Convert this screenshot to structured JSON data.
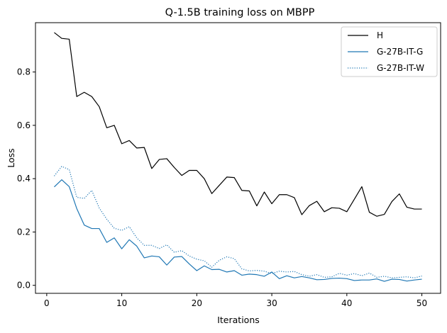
{
  "chart_data": {
    "type": "line",
    "title": "Q-1.5B training loss on MBPP",
    "xlabel": "Iterations",
    "ylabel": "Loss",
    "xlim": [
      -1.5,
      52.5
    ],
    "ylim": [
      -0.03,
      0.985
    ],
    "xticks": [
      0,
      10,
      20,
      30,
      40,
      50
    ],
    "yticks": [
      0.0,
      0.2,
      0.4,
      0.6,
      0.8
    ],
    "ytick_labels": [
      "0.0",
      "0.2",
      "0.4",
      "0.6",
      "0.8"
    ],
    "grid": false,
    "legend_position": "top-right",
    "x": [
      1,
      2,
      3,
      4,
      5,
      6,
      7,
      8,
      9,
      10,
      11,
      12,
      13,
      14,
      15,
      16,
      17,
      18,
      19,
      20,
      21,
      22,
      23,
      24,
      25,
      26,
      27,
      28,
      29,
      30,
      31,
      32,
      33,
      34,
      35,
      36,
      37,
      38,
      39,
      40,
      41,
      42,
      43,
      44,
      45,
      46,
      47,
      48,
      49,
      50
    ],
    "series": [
      {
        "name": "H",
        "color": "#000000",
        "style": "solid",
        "values": [
          0.948,
          0.926,
          0.923,
          0.708,
          0.724,
          0.708,
          0.67,
          0.591,
          0.6,
          0.531,
          0.543,
          0.515,
          0.517,
          0.438,
          0.472,
          0.475,
          0.442,
          0.412,
          0.431,
          0.431,
          0.4,
          0.344,
          0.375,
          0.406,
          0.404,
          0.356,
          0.354,
          0.298,
          0.35,
          0.306,
          0.34,
          0.34,
          0.329,
          0.265,
          0.299,
          0.315,
          0.276,
          0.291,
          0.289,
          0.276,
          0.323,
          0.37,
          0.274,
          0.259,
          0.266,
          0.314,
          0.343,
          0.293,
          0.286,
          0.286
        ]
      },
      {
        "name": "G-27B-IT-G",
        "color": "#1f77b4",
        "style": "solid",
        "values": [
          0.369,
          0.396,
          0.37,
          0.288,
          0.226,
          0.213,
          0.213,
          0.161,
          0.178,
          0.137,
          0.171,
          0.147,
          0.103,
          0.11,
          0.107,
          0.076,
          0.106,
          0.108,
          0.08,
          0.055,
          0.073,
          0.059,
          0.06,
          0.05,
          0.055,
          0.038,
          0.042,
          0.04,
          0.034,
          0.05,
          0.025,
          0.036,
          0.028,
          0.033,
          0.028,
          0.021,
          0.022,
          0.026,
          0.027,
          0.025,
          0.018,
          0.02,
          0.02,
          0.024,
          0.015,
          0.023,
          0.022,
          0.016,
          0.02,
          0.023
        ]
      },
      {
        "name": "G-27B-IT-W",
        "color": "#1f77b4",
        "style": "dotted",
        "values": [
          0.41,
          0.446,
          0.434,
          0.33,
          0.326,
          0.356,
          0.29,
          0.248,
          0.214,
          0.206,
          0.22,
          0.178,
          0.15,
          0.15,
          0.138,
          0.152,
          0.124,
          0.13,
          0.11,
          0.098,
          0.092,
          0.068,
          0.094,
          0.107,
          0.1,
          0.062,
          0.054,
          0.056,
          0.053,
          0.044,
          0.053,
          0.05,
          0.052,
          0.04,
          0.034,
          0.04,
          0.03,
          0.032,
          0.045,
          0.038,
          0.044,
          0.036,
          0.046,
          0.03,
          0.034,
          0.028,
          0.03,
          0.032,
          0.028,
          0.035
        ]
      }
    ]
  }
}
